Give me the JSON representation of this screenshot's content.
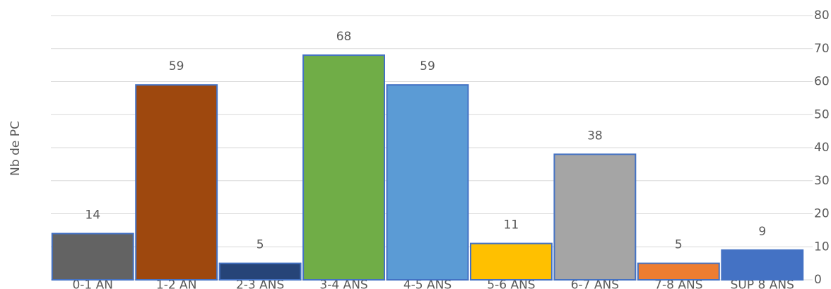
{
  "chart_data": {
    "type": "bar",
    "y_axis_label": "Nb de PC",
    "categories": [
      "0-1 AN",
      "1-2 AN",
      "2-3 ANS",
      "3-4 ANS",
      "4-5 ANS",
      "5-6 ANS",
      "6-7 ANS",
      "7-8 ANS",
      "SUP 8 ANS"
    ],
    "values": [
      14,
      59,
      5,
      68,
      59,
      11,
      38,
      5,
      9
    ],
    "colors": [
      "#636363",
      "#9e480e",
      "#264478",
      "#70ad47",
      "#5b9bd5",
      "#ffc000",
      "#a5a5a5",
      "#ed7d31",
      "#4472c4"
    ],
    "edge_color": "#4472c4",
    "ylim": [
      0,
      80
    ],
    "yticks": [
      0,
      10,
      20,
      30,
      40,
      50,
      60,
      70,
      80
    ],
    "y_axis_side": "right",
    "grid": true
  }
}
